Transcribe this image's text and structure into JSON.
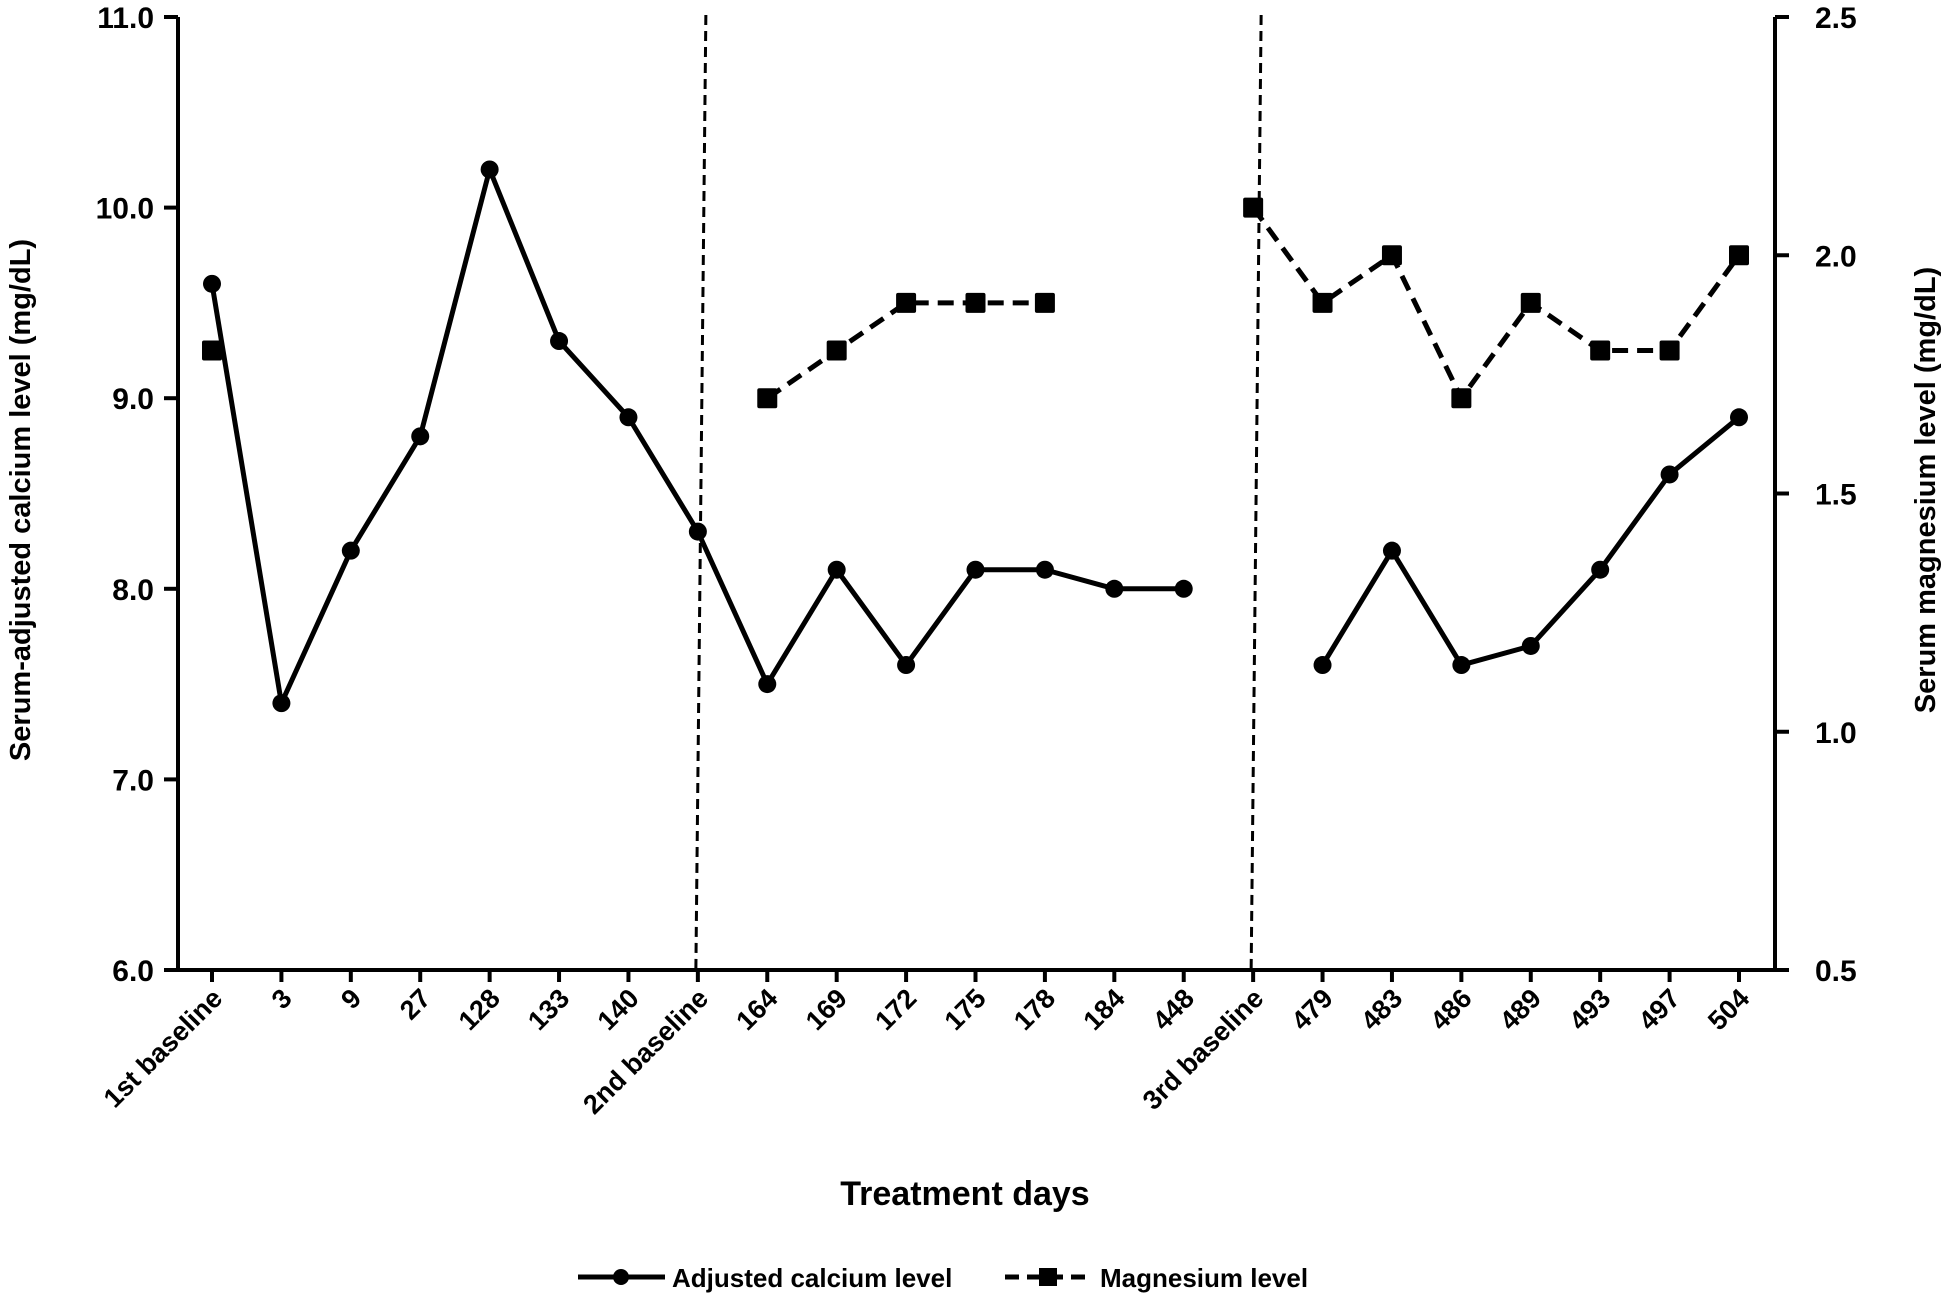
{
  "chart_data": {
    "type": "line",
    "title": "",
    "xlabel": "Treatment days",
    "ylabel_left": "Serum-adjusted calcium level (mg/dL)",
    "ylabel_right": "Serum magnesium level (mg/dL)",
    "ylim_left": [
      6.0,
      11.0
    ],
    "ylim_right": [
      0.5,
      2.5
    ],
    "yticks_left": [
      "6.0",
      "7.0",
      "8.0",
      "9.0",
      "10.0",
      "11.0"
    ],
    "yticks_right": [
      "0.5",
      "1.0",
      "1.5",
      "2.0",
      "2.5"
    ],
    "categories": [
      "1st baseline",
      "3",
      "9",
      "27",
      "128",
      "133",
      "140",
      "2nd baseline",
      "164",
      "169",
      "172",
      "175",
      "178",
      "184",
      "448",
      "3rd baseline",
      "479",
      "483",
      "486",
      "489",
      "493",
      "497",
      "504"
    ],
    "grid": false,
    "legend_position": "bottom",
    "separators": [
      "2nd baseline",
      "3rd baseline"
    ],
    "series": [
      {
        "name": "Adjusted calcium level",
        "axis": "left",
        "style": "solid",
        "marker": "circle",
        "values": [
          9.6,
          7.4,
          8.2,
          8.8,
          10.2,
          9.3,
          8.9,
          8.3,
          7.5,
          8.1,
          7.6,
          8.1,
          8.1,
          8.0,
          8.0,
          null,
          7.6,
          8.2,
          7.6,
          7.7,
          8.1,
          8.6,
          8.9
        ]
      },
      {
        "name": "Magnesium level",
        "axis": "right",
        "style": "dashed",
        "marker": "square",
        "values": [
          1.8,
          null,
          null,
          null,
          null,
          null,
          null,
          null,
          1.7,
          1.8,
          1.9,
          1.9,
          1.9,
          null,
          null,
          2.1,
          1.9,
          2.0,
          1.7,
          1.9,
          1.8,
          1.8,
          2.0
        ]
      }
    ]
  }
}
